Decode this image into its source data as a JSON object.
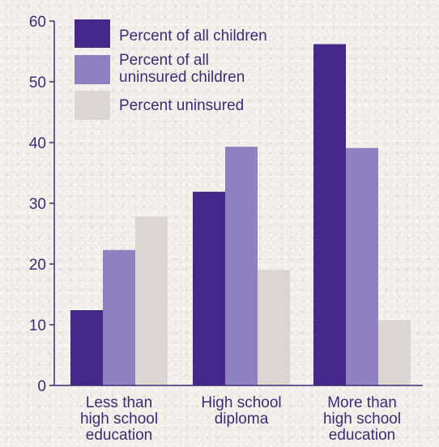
{
  "chart_data": {
    "type": "bar",
    "categories": [
      [
        "Less than",
        "high school",
        "education"
      ],
      [
        "High school",
        "diploma"
      ],
      [
        "More than",
        "high school",
        "education"
      ]
    ],
    "series": [
      {
        "name": "Percent of all children",
        "color": "#45288a",
        "values": [
          12.4,
          31.9,
          56.2
        ]
      },
      {
        "name": [
          "Percent of all",
          "uninsured children"
        ],
        "color": "#8f80bf",
        "values": [
          22.3,
          39.3,
          39.1
        ]
      },
      {
        "name": "Percent uninsured",
        "color": "#dcd6d0",
        "values": [
          27.8,
          19.0,
          10.8
        ]
      }
    ],
    "yticks": [
      0,
      10,
      20,
      30,
      40,
      50,
      60
    ],
    "ylim": [
      0,
      60
    ],
    "legend_position": "top-left"
  }
}
